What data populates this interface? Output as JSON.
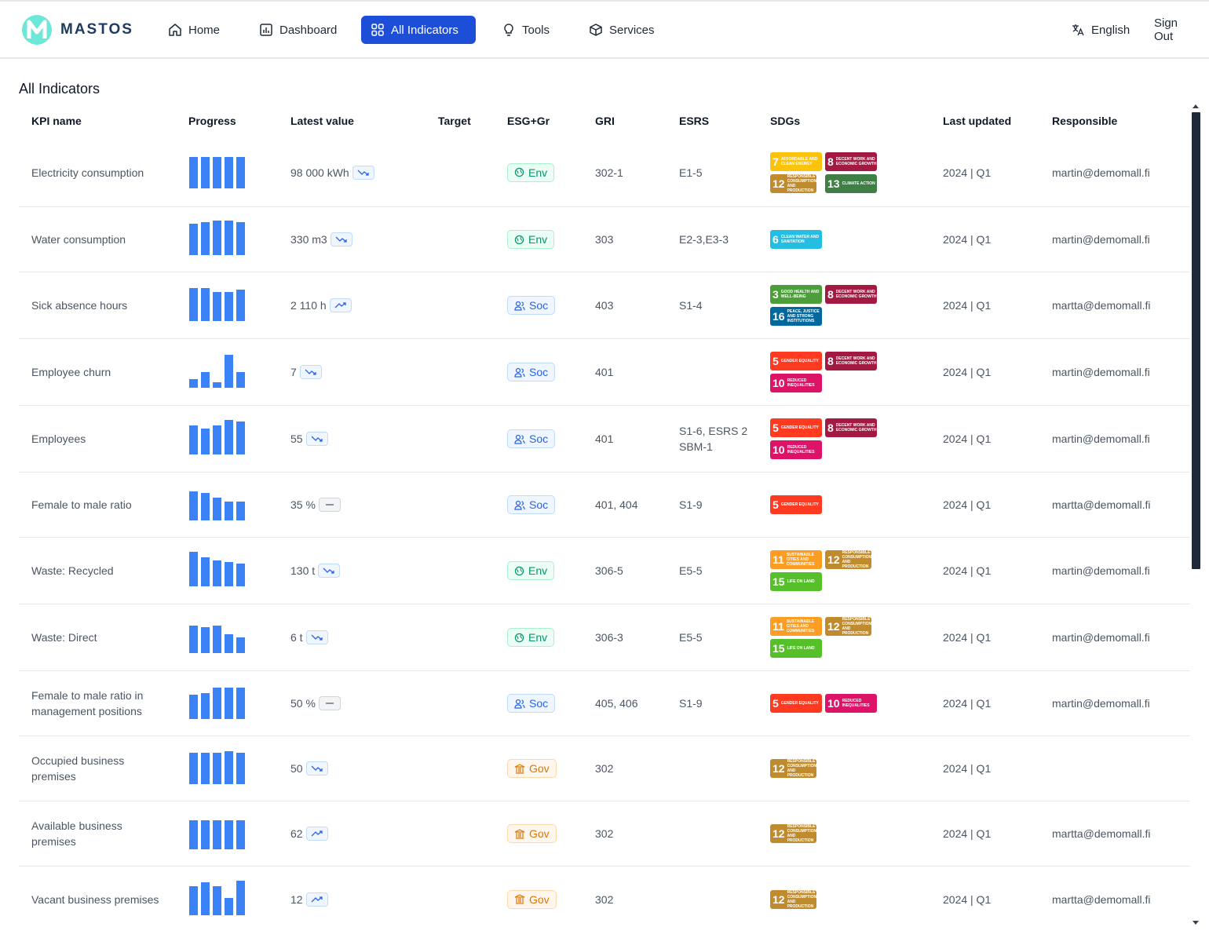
{
  "brand": {
    "name": "MASTOS"
  },
  "nav": {
    "items": [
      {
        "label": "Home",
        "icon": "home-icon"
      },
      {
        "label": "Dashboard",
        "icon": "chart-icon"
      },
      {
        "label": "All Indicators",
        "icon": "grid-icon",
        "active": true
      },
      {
        "label": "Tools",
        "icon": "lightbulb-icon"
      },
      {
        "label": "Services",
        "icon": "box-icon"
      }
    ],
    "language": "English",
    "signout": "Sign Out"
  },
  "page": {
    "title": "All Indicators"
  },
  "table": {
    "headers": [
      "KPI name",
      "Progress",
      "Latest value",
      "Target",
      "ESG+Gr",
      "GRI",
      "ESRS",
      "SDGs",
      "Last updated",
      "Responsible"
    ],
    "rows": [
      {
        "kpi": "Electricity consumption",
        "bars": [
          0.9,
          0.9,
          0.9,
          0.9,
          0.9
        ],
        "latest": "98 000 kWh",
        "trend": "down",
        "target": "",
        "esg": "Env",
        "gri": "302-1",
        "esrs": "E1-5",
        "sdgs": [
          7,
          8,
          12,
          13
        ],
        "updated": "2024 | Q1",
        "responsible": "martin@demomall.fi"
      },
      {
        "kpi": "Water consumption",
        "bars": [
          0.9,
          0.95,
          1.0,
          1.0,
          0.95
        ],
        "latest": "330 m3",
        "trend": "down",
        "target": "",
        "esg": "Env",
        "gri": "303",
        "esrs": "E2-3,E3-3",
        "sdgs": [
          6
        ],
        "updated": "2024 | Q1",
        "responsible": "martin@demomall.fi"
      },
      {
        "kpi": "Sick absence hours",
        "bars": [
          0.95,
          0.95,
          0.85,
          0.85,
          0.9
        ],
        "latest": "2 110 h",
        "trend": "up",
        "target": "",
        "esg": "Soc",
        "gri": "403",
        "esrs": "S1-4",
        "sdgs": [
          3,
          8,
          16
        ],
        "updated": "2024 | Q1",
        "responsible": "martta@demomall.fi"
      },
      {
        "kpi": "Employee churn",
        "bars": [
          0.25,
          0.45,
          0.15,
          0.95,
          0.45
        ],
        "latest": "7",
        "trend": "down",
        "target": "",
        "esg": "Soc",
        "gri": "401",
        "esrs": "",
        "sdgs": [
          5,
          8,
          10
        ],
        "updated": "2024 | Q1",
        "responsible": "martin@demomall.fi"
      },
      {
        "kpi": "Employees",
        "bars": [
          0.85,
          0.75,
          0.85,
          1.0,
          0.95
        ],
        "latest": "55",
        "trend": "down",
        "target": "",
        "esg": "Soc",
        "gri": "401",
        "esrs": "S1-6, ESRS 2 SBM-1",
        "sdgs": [
          5,
          8,
          10
        ],
        "updated": "2024 | Q1",
        "responsible": "martin@demomall.fi"
      },
      {
        "kpi": "Female to male ratio",
        "bars": [
          0.85,
          0.8,
          0.65,
          0.55,
          0.55
        ],
        "latest": "35 %",
        "trend": "flat",
        "target": "",
        "esg": "Soc",
        "gri": "401, 404",
        "esrs": "S1-9",
        "sdgs": [
          5
        ],
        "updated": "2024 | Q1",
        "responsible": "martta@demomall.fi"
      },
      {
        "kpi": "Waste: Recycled",
        "bars": [
          1.0,
          0.85,
          0.75,
          0.7,
          0.65
        ],
        "latest": "130 t",
        "trend": "down",
        "target": "",
        "esg": "Env",
        "gri": "306-5",
        "esrs": "E5-5",
        "sdgs": [
          11,
          12,
          15
        ],
        "updated": "2024 | Q1",
        "responsible": "martin@demomall.fi"
      },
      {
        "kpi": "Waste: Direct",
        "bars": [
          0.8,
          0.75,
          0.8,
          0.55,
          0.45
        ],
        "latest": "6 t",
        "trend": "down",
        "target": "",
        "esg": "Env",
        "gri": "306-3",
        "esrs": "E5-5",
        "sdgs": [
          11,
          12,
          15
        ],
        "updated": "2024 | Q1",
        "responsible": "martin@demomall.fi"
      },
      {
        "kpi": "Female to male ratio in management positions",
        "bars": [
          0.7,
          0.75,
          0.9,
          0.9,
          0.9
        ],
        "latest": "50 %",
        "trend": "flat",
        "target": "",
        "esg": "Soc",
        "gri": "405, 406",
        "esrs": "S1-9",
        "sdgs": [
          5,
          10
        ],
        "updated": "2024 | Q1",
        "responsible": "martin@demomall.fi"
      },
      {
        "kpi": "Occupied business premises",
        "bars": [
          0.9,
          0.9,
          0.9,
          0.95,
          0.9
        ],
        "latest": "50",
        "trend": "down",
        "target": "",
        "esg": "Gov",
        "gri": "302",
        "esrs": "",
        "sdgs": [
          12
        ],
        "updated": "2024 | Q1",
        "responsible": ""
      },
      {
        "kpi": "Available business premises",
        "bars": [
          0.85,
          0.85,
          0.85,
          0.85,
          0.85
        ],
        "latest": "62",
        "trend": "up",
        "target": "",
        "esg": "Gov",
        "gri": "302",
        "esrs": "",
        "sdgs": [
          12
        ],
        "updated": "2024 | Q1",
        "responsible": "martta@demomall.fi"
      },
      {
        "kpi": "Vacant business premises",
        "bars": [
          0.85,
          0.95,
          0.85,
          0.5,
          1.0
        ],
        "latest": "12",
        "trend": "up",
        "target": "",
        "esg": "Gov",
        "gri": "302",
        "esrs": "",
        "sdgs": [
          12
        ],
        "updated": "2024 | Q1",
        "responsible": "martta@demomall.fi"
      }
    ]
  },
  "sdg_meta": {
    "3": {
      "color": "#4c9f38",
      "text": "GOOD HEALTH AND WELL-BEING"
    },
    "5": {
      "color": "#ff3a21",
      "text": "GENDER EQUALITY"
    },
    "6": {
      "color": "#26bde2",
      "text": "CLEAN WATER AND SANITATION"
    },
    "7": {
      "color": "#fcc30b",
      "text": "AFFORDABLE AND CLEAN ENERGY"
    },
    "8": {
      "color": "#a21942",
      "text": "DECENT WORK AND ECONOMIC GROWTH"
    },
    "10": {
      "color": "#dd1367",
      "text": "REDUCED INEQUALITIES"
    },
    "11": {
      "color": "#fd9d24",
      "text": "SUSTAINABLE CITIES AND COMMUNITIES"
    },
    "12": {
      "color": "#bf8b2e",
      "text": "RESPONSIBLE CONSUMPTION AND PRODUCTION"
    },
    "13": {
      "color": "#3f7e44",
      "text": "CLIMATE ACTION"
    },
    "15": {
      "color": "#56c02b",
      "text": "LIFE ON LAND"
    },
    "16": {
      "color": "#00689d",
      "text": "PEACE, JUSTICE AND STRONG INSTITUTIONS"
    }
  },
  "colors": {
    "accent": "#1d4ed8",
    "bar": "#3b82f6"
  }
}
